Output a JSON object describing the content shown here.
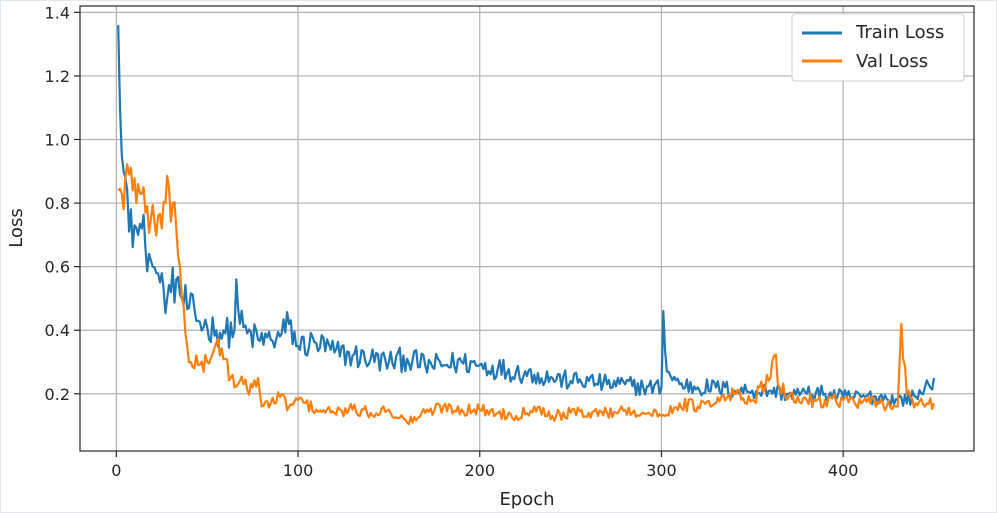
{
  "chart_data": {
    "type": "line",
    "xlabel": "Epoch",
    "ylabel": "Loss",
    "xlim": [
      -20,
      472
    ],
    "ylim": [
      0.02,
      1.42
    ],
    "xticks": [
      0,
      100,
      200,
      300,
      400
    ],
    "yticks": [
      0.2,
      0.4,
      0.6,
      0.8,
      1.0,
      1.2,
      1.4
    ],
    "ytick_labels": [
      "0.2",
      "0.4",
      "0.6",
      "0.8",
      "1.0",
      "1.2",
      "1.4"
    ],
    "grid": true,
    "legend_position": "top-right",
    "colors": {
      "train": "#1f77b4",
      "val": "#ff7f0e"
    },
    "series": [
      {
        "name": "Train Loss",
        "points": [
          [
            1,
            1.36
          ],
          [
            2,
            1.1
          ],
          [
            3,
            0.95
          ],
          [
            4,
            0.9
          ],
          [
            5,
            0.88
          ],
          [
            6,
            0.84
          ],
          [
            8,
            0.78
          ],
          [
            10,
            0.73
          ],
          [
            12,
            0.7
          ],
          [
            14,
            0.72
          ],
          [
            16,
            0.66
          ],
          [
            18,
            0.64
          ],
          [
            20,
            0.6
          ],
          [
            22,
            0.58
          ],
          [
            24,
            0.55
          ],
          [
            26,
            0.53
          ],
          [
            28,
            0.5
          ],
          [
            30,
            0.52
          ],
          [
            33,
            0.56
          ],
          [
            36,
            0.5
          ],
          [
            40,
            0.47
          ],
          [
            45,
            0.43
          ],
          [
            50,
            0.41
          ],
          [
            55,
            0.4
          ],
          [
            60,
            0.39
          ],
          [
            65,
            0.4
          ],
          [
            66,
            0.56
          ],
          [
            68,
            0.42
          ],
          [
            72,
            0.39
          ],
          [
            78,
            0.37
          ],
          [
            85,
            0.37
          ],
          [
            90,
            0.38
          ],
          [
            95,
            0.42
          ],
          [
            100,
            0.35
          ],
          [
            110,
            0.36
          ],
          [
            120,
            0.33
          ],
          [
            130,
            0.32
          ],
          [
            140,
            0.31
          ],
          [
            150,
            0.3
          ],
          [
            160,
            0.31
          ],
          [
            170,
            0.29
          ],
          [
            180,
            0.29
          ],
          [
            190,
            0.3
          ],
          [
            200,
            0.29
          ],
          [
            210,
            0.28
          ],
          [
            220,
            0.27
          ],
          [
            230,
            0.26
          ],
          [
            240,
            0.25
          ],
          [
            250,
            0.24
          ],
          [
            260,
            0.24
          ],
          [
            270,
            0.23
          ],
          [
            280,
            0.23
          ],
          [
            290,
            0.22
          ],
          [
            300,
            0.22
          ],
          [
            301,
            0.46
          ],
          [
            303,
            0.27
          ],
          [
            310,
            0.23
          ],
          [
            320,
            0.22
          ],
          [
            330,
            0.22
          ],
          [
            340,
            0.21
          ],
          [
            350,
            0.21
          ],
          [
            360,
            0.21
          ],
          [
            370,
            0.2
          ],
          [
            380,
            0.2
          ],
          [
            390,
            0.2
          ],
          [
            400,
            0.19
          ],
          [
            410,
            0.19
          ],
          [
            420,
            0.19
          ],
          [
            430,
            0.18
          ],
          [
            440,
            0.19
          ],
          [
            445,
            0.22
          ],
          [
            450,
            0.25
          ]
        ]
      },
      {
        "name": "Val Loss",
        "points": [
          [
            1,
            0.84
          ],
          [
            3,
            0.83
          ],
          [
            5,
            0.88
          ],
          [
            7,
            0.89
          ],
          [
            9,
            0.84
          ],
          [
            11,
            0.8
          ],
          [
            13,
            0.83
          ],
          [
            15,
            0.85
          ],
          [
            17,
            0.79
          ],
          [
            19,
            0.75
          ],
          [
            21,
            0.74
          ],
          [
            23,
            0.76
          ],
          [
            25,
            0.72
          ],
          [
            27,
            0.8
          ],
          [
            29,
            0.85
          ],
          [
            31,
            0.8
          ],
          [
            33,
            0.72
          ],
          [
            35,
            0.6
          ],
          [
            37,
            0.48
          ],
          [
            39,
            0.35
          ],
          [
            41,
            0.3
          ],
          [
            43,
            0.28
          ],
          [
            45,
            0.29
          ],
          [
            50,
            0.3
          ],
          [
            55,
            0.36
          ],
          [
            60,
            0.31
          ],
          [
            65,
            0.22
          ],
          [
            70,
            0.23
          ],
          [
            75,
            0.22
          ],
          [
            78,
            0.25
          ],
          [
            80,
            0.16
          ],
          [
            85,
            0.17
          ],
          [
            90,
            0.19
          ],
          [
            95,
            0.16
          ],
          [
            100,
            0.18
          ],
          [
            110,
            0.15
          ],
          [
            120,
            0.14
          ],
          [
            130,
            0.15
          ],
          [
            140,
            0.14
          ],
          [
            150,
            0.15
          ],
          [
            160,
            0.11
          ],
          [
            170,
            0.14
          ],
          [
            180,
            0.16
          ],
          [
            190,
            0.15
          ],
          [
            200,
            0.15
          ],
          [
            210,
            0.14
          ],
          [
            220,
            0.13
          ],
          [
            230,
            0.16
          ],
          [
            240,
            0.13
          ],
          [
            250,
            0.14
          ],
          [
            260,
            0.14
          ],
          [
            270,
            0.14
          ],
          [
            280,
            0.15
          ],
          [
            290,
            0.14
          ],
          [
            300,
            0.13
          ],
          [
            310,
            0.17
          ],
          [
            320,
            0.16
          ],
          [
            330,
            0.17
          ],
          [
            340,
            0.2
          ],
          [
            350,
            0.18
          ],
          [
            360,
            0.25
          ],
          [
            362,
            0.32
          ],
          [
            365,
            0.22
          ],
          [
            370,
            0.19
          ],
          [
            380,
            0.18
          ],
          [
            390,
            0.18
          ],
          [
            400,
            0.18
          ],
          [
            410,
            0.17
          ],
          [
            420,
            0.17
          ],
          [
            430,
            0.16
          ],
          [
            432,
            0.42
          ],
          [
            435,
            0.2
          ],
          [
            440,
            0.17
          ],
          [
            445,
            0.16
          ],
          [
            450,
            0.17
          ]
        ]
      }
    ]
  }
}
